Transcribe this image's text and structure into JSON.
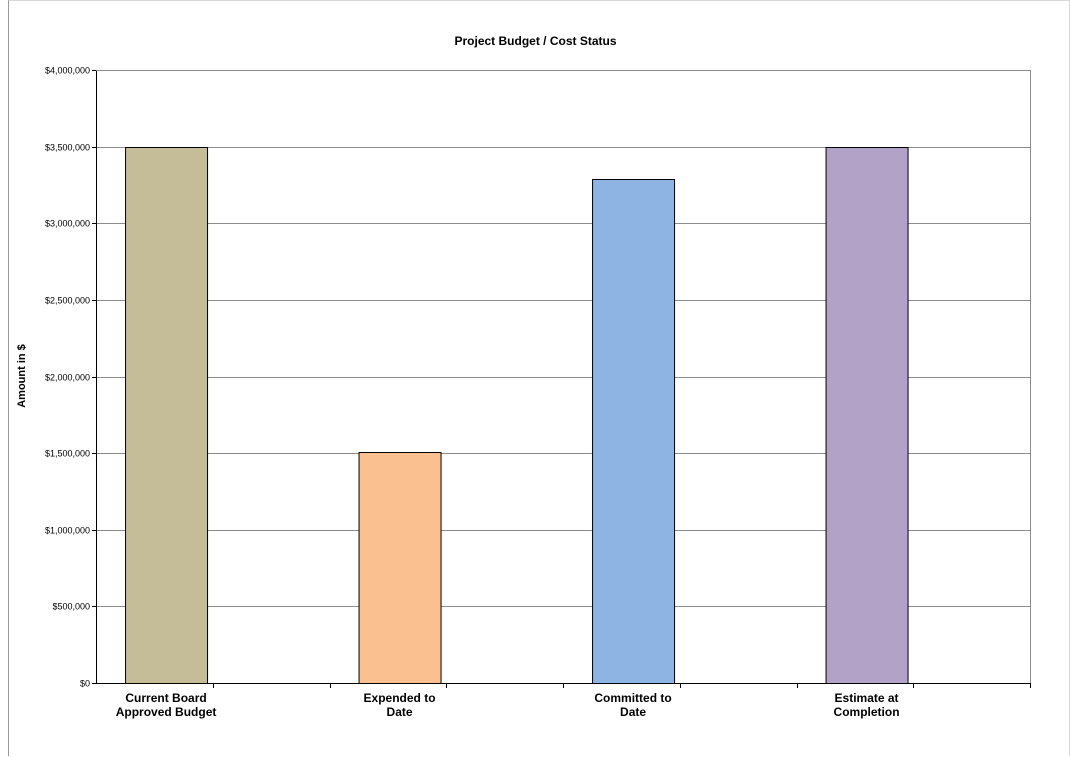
{
  "chart_data": {
    "type": "bar",
    "title": "Project Budget / Cost Status",
    "xlabel": "",
    "ylabel": "Amount in $",
    "ylim": [
      0,
      4000000
    ],
    "ytick_step": 500000,
    "yticks": [
      "$0",
      "$500,000",
      "$1,000,000",
      "$1,500,000",
      "$2,000,000",
      "$2,500,000",
      "$3,000,000",
      "$3,500,000",
      "$4,000,000"
    ],
    "grid": true,
    "legend": "none",
    "categories": [
      [
        "Current Board",
        "Approved Budget"
      ],
      [
        "Expended  to",
        "Date"
      ],
      [
        "Committed to",
        "Date"
      ],
      [
        "Estimate at",
        "Completion"
      ]
    ],
    "values": [
      3500000,
      1510000,
      3290000,
      3500000
    ],
    "colors": [
      "#c4bd97",
      "#fac090",
      "#8eb4e3",
      "#b3a2c7"
    ]
  }
}
